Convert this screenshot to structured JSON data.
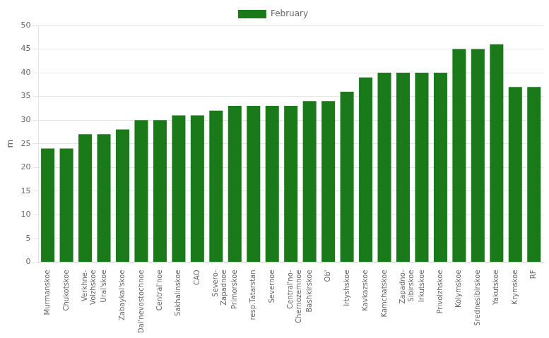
{
  "chart_data": {
    "type": "bar",
    "categories": [
      "Murmanskoe",
      "Chukotskoe",
      "Verkhne-\nVolzhskoe",
      "Ural'skoe",
      "Zabaykal'skoe",
      "Dal'nevostochnoe",
      "Central'noe",
      "Sakhalinskoe",
      "CAO",
      "Severo-\nZapadnoe",
      "Primorskoe",
      "resp.Tatarstan",
      "Severnoe",
      "Central'no-\nChernozemnoe",
      "Bashkirskoe",
      "Ob'",
      "Irtyshskoe",
      "Kavkazskoe",
      "Kamchatskoe",
      "Zapadno-\nSibirskoe",
      "Irkutskoe",
      "Privolzhskoe",
      "Kolymskoe",
      "Srednesibirskoe",
      "Yakutskoe",
      "Krymskoe",
      "RF"
    ],
    "series": [
      {
        "name": "February",
        "color": "#1a7a1a",
        "values": [
          24,
          24,
          27,
          27,
          28,
          30,
          30,
          31,
          31,
          32,
          33,
          33,
          33,
          33,
          34,
          34,
          36,
          39,
          40,
          40,
          40,
          40,
          45,
          45,
          46,
          37,
          37
        ]
      }
    ],
    "ylabel": "m",
    "ylim": [
      0,
      50
    ],
    "yticks": [
      0,
      5,
      10,
      15,
      20,
      25,
      30,
      35,
      40,
      45,
      50
    ],
    "grid": true,
    "legend": "top"
  }
}
